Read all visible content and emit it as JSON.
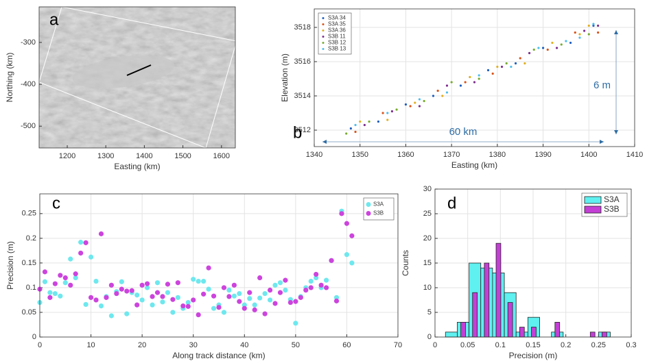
{
  "chart_data": [
    {
      "type": "image",
      "panel_label": "a",
      "xlabel": "Easting (km)",
      "ylabel": "Northing (km)",
      "xlim": [
        1127,
        1636
      ],
      "ylim": [
        -552,
        -215
      ],
      "xticks": [
        1200,
        1300,
        1400,
        1500,
        1600
      ],
      "yticks": [
        -500,
        -400,
        -300
      ]
    },
    {
      "type": "scatter",
      "panel_label": "b",
      "xlabel": "Easting (km)",
      "ylabel": "Elevation (m)",
      "xlim": [
        1340,
        1410
      ],
      "ylim": [
        3511.04,
        3519.08
      ],
      "xticks": [
        1340,
        1350,
        1360,
        1370,
        1380,
        1390,
        1400,
        1410
      ],
      "yticks": [
        3512,
        3514,
        3516,
        3518
      ],
      "grid": true,
      "legend": "upper left",
      "annotations": [
        "60 km",
        "6 m"
      ],
      "series": [
        {
          "name": "S3A 34",
          "color": "#1f5fbf",
          "x": [
            1348,
            1354,
            1360,
            1366,
            1372,
            1378,
            1384,
            1390,
            1396,
            1401
          ],
          "values": [
            3512.1,
            3512.5,
            3513.5,
            3514.0,
            3514.6,
            3515.5,
            3515.9,
            3516.8,
            3517.1,
            3518.1
          ]
        },
        {
          "name": "S3A 35",
          "color": "#d9541a",
          "x": [
            1349,
            1355,
            1361,
            1367,
            1373,
            1379,
            1385,
            1391,
            1397,
            1402
          ],
          "values": [
            3511.9,
            3513.0,
            3513.4,
            3514.3,
            3514.8,
            3515.3,
            3516.2,
            3516.7,
            3517.7,
            3517.7
          ]
        },
        {
          "name": "S3A 36",
          "color": "#e0b020",
          "x": [
            1350,
            1356,
            1362,
            1368,
            1374,
            1380,
            1386,
            1392,
            1398,
            1400
          ],
          "values": [
            3512.5,
            3512.6,
            3513.6,
            3514.0,
            3515.1,
            3515.7,
            3515.9,
            3517.1,
            3517.6,
            3518.1
          ]
        },
        {
          "name": "S3B 11",
          "color": "#7e2f8e",
          "x": [
            1351,
            1357,
            1363,
            1369,
            1375,
            1381,
            1387,
            1393,
            1399,
            1402
          ],
          "values": [
            3512.3,
            3513.1,
            3513.4,
            3514.6,
            3514.8,
            3515.7,
            3516.5,
            3516.8,
            3517.8,
            3518.1
          ]
        },
        {
          "name": "S3B 12",
          "color": "#77ac30",
          "x": [
            1347,
            1352,
            1358,
            1364,
            1370,
            1376,
            1382,
            1388,
            1394,
            1400
          ],
          "values": [
            3511.8,
            3512.5,
            3513.2,
            3513.7,
            3514.8,
            3515.0,
            3515.9,
            3516.7,
            3517.0,
            3517.6
          ]
        },
        {
          "name": "S3B 13",
          "color": "#4dbeee",
          "x": [
            1349,
            1356,
            1363,
            1369,
            1376,
            1383,
            1389,
            1395,
            1398,
            1401
          ],
          "values": [
            3512.3,
            3513.0,
            3513.8,
            3514.2,
            3515.2,
            3515.7,
            3516.8,
            3517.2,
            3517.4,
            3518.2
          ]
        }
      ]
    },
    {
      "type": "scatter",
      "panel_label": "c",
      "xlabel": "Along track distance (km)",
      "ylabel": "Precision (m)",
      "xlim": [
        0,
        70
      ],
      "ylim": [
        0,
        0.29
      ],
      "xticks": [
        0,
        10,
        20,
        30,
        40,
        50,
        60,
        70
      ],
      "yticks": [
        0,
        0.05,
        0.1,
        0.15,
        0.2,
        0.25
      ],
      "grid": true,
      "legend": "upper right",
      "x": [
        0,
        1,
        2,
        3,
        4,
        5,
        6,
        7,
        8,
        9,
        10,
        11,
        12,
        13,
        14,
        15,
        16,
        17,
        18,
        19,
        20,
        21,
        22,
        23,
        24,
        25,
        26,
        27,
        28,
        29,
        30,
        31,
        32,
        33,
        34,
        35,
        36,
        37,
        38,
        39,
        40,
        41,
        42,
        43,
        44,
        45,
        46,
        47,
        48,
        49,
        50,
        51,
        52,
        53,
        54,
        55,
        56,
        57,
        58,
        59,
        60,
        61
      ],
      "series": [
        {
          "name": "S3A",
          "color": "#6ee8ee",
          "values": [
            0.07,
            0.112,
            0.09,
            0.088,
            0.083,
            0.11,
            0.158,
            0.12,
            0.192,
            0.066,
            0.162,
            0.113,
            0.063,
            0.082,
            0.043,
            0.092,
            0.112,
            0.047,
            0.09,
            0.085,
            0.075,
            0.1,
            0.065,
            0.11,
            0.071,
            0.09,
            0.05,
            0.08,
            0.058,
            0.07,
            0.117,
            0.113,
            0.113,
            0.097,
            0.058,
            0.065,
            0.05,
            0.095,
            0.083,
            0.088,
            0.065,
            0.078,
            0.065,
            0.079,
            0.088,
            0.075,
            0.105,
            0.11,
            0.095,
            0.076,
            0.028,
            0.082,
            0.1,
            0.113,
            0.12,
            0.1,
            0.115,
            0.155,
            0.08,
            0.255,
            0.167,
            0.15
          ]
        },
        {
          "name": "S3B",
          "color": "#cc44dd",
          "values": [
            0.097,
            0.132,
            0.08,
            0.108,
            0.125,
            0.12,
            0.105,
            0.128,
            0.17,
            0.191,
            0.08,
            0.075,
            0.209,
            0.08,
            0.105,
            0.088,
            0.097,
            0.093,
            0.094,
            0.065,
            0.105,
            0.108,
            0.082,
            0.09,
            0.082,
            0.107,
            0.076,
            0.11,
            0.063,
            0.062,
            0.075,
            0.045,
            0.087,
            0.14,
            0.083,
            0.06,
            0.1,
            0.082,
            0.105,
            0.072,
            0.058,
            0.09,
            0.055,
            0.12,
            0.047,
            0.095,
            0.068,
            0.09,
            0.115,
            0.07,
            0.072,
            0.08,
            0.095,
            0.1,
            0.127,
            0.105,
            0.1,
            0.155,
            0.073,
            0.25,
            0.23,
            0.205
          ]
        }
      ]
    },
    {
      "type": "histogram",
      "panel_label": "d",
      "xlabel": "Precision (m)",
      "ylabel": "Counts",
      "xlim": [
        0,
        0.3
      ],
      "ylim": [
        0,
        30
      ],
      "xticks": [
        0,
        0.05,
        0.1,
        0.15,
        0.2,
        0.25,
        0.3
      ],
      "yticks": [
        0,
        5,
        10,
        15,
        20,
        25,
        30
      ],
      "grid": true,
      "legend": "upper right",
      "bins": [
        0.016,
        0.034,
        0.052,
        0.07,
        0.088,
        0.106,
        0.124,
        0.142,
        0.16,
        0.178,
        0.196,
        0.214,
        0.232,
        0.25,
        0.268
      ],
      "series": [
        {
          "name": "S3A",
          "color": "#5ff0f0",
          "values": [
            1,
            3,
            15,
            14,
            13,
            9,
            1,
            4,
            0,
            1,
            0,
            0,
            0,
            1
          ]
        },
        {
          "name": "S3B",
          "color": "#c43fd6",
          "values": [
            0,
            3,
            9,
            15,
            19,
            7,
            2,
            2,
            0,
            3,
            0,
            0,
            1,
            1
          ]
        }
      ]
    }
  ]
}
